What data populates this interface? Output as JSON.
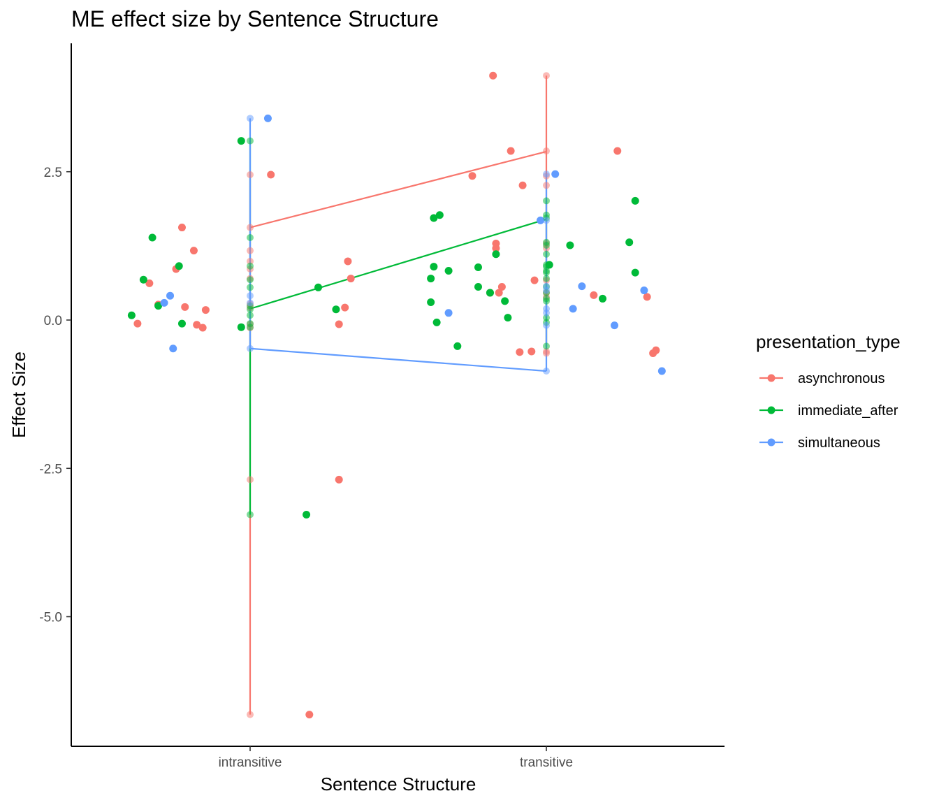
{
  "chart_data": {
    "type": "scatter",
    "title": "ME effect size by Sentence Structure",
    "xlabel": "Sentence Structure",
    "ylabel": "Effect Size",
    "categories": [
      "intransitive",
      "transitive"
    ],
    "yticks": [
      "2.5",
      "0.0",
      "-2.5",
      "-5.0"
    ],
    "ytick_values": [
      2.5,
      0.0,
      -2.5,
      -5.0
    ],
    "ylim": [
      -7.2,
      4.6
    ],
    "grid": false,
    "legend": {
      "title": "presentation_type",
      "placement": "right"
    },
    "series": [
      {
        "name": "asynchronous",
        "color": "#f8766d",
        "mean": [
          1.56,
          2.84
        ],
        "jittered_points": [
          [
            0.62,
            -0.06
          ],
          [
            0.66,
            0.62
          ],
          [
            0.69,
            0.26
          ],
          [
            0.75,
            0.86
          ],
          [
            0.77,
            1.56
          ],
          [
            0.78,
            0.22
          ],
          [
            0.81,
            1.17
          ],
          [
            0.82,
            -0.08
          ],
          [
            0.84,
            -0.13
          ],
          [
            0.85,
            0.17
          ],
          [
            1.07,
            2.45
          ],
          [
            1.2,
            -6.65
          ],
          [
            1.3,
            -2.69
          ],
          [
            1.3,
            -0.07
          ],
          [
            1.32,
            0.21
          ],
          [
            1.33,
            0.99
          ],
          [
            1.34,
            0.7
          ],
          [
            1.75,
            2.43
          ],
          [
            1.81,
            0.46
          ],
          [
            1.82,
            4.12
          ],
          [
            1.83,
            1.29
          ],
          [
            1.83,
            1.21
          ],
          [
            1.84,
            0.46
          ],
          [
            1.85,
            0.56
          ],
          [
            1.88,
            2.85
          ],
          [
            1.91,
            -0.54
          ],
          [
            1.92,
            2.27
          ],
          [
            1.95,
            -0.53
          ],
          [
            1.96,
            0.67
          ],
          [
            2.24,
            2.85
          ],
          [
            2.16,
            0.42
          ],
          [
            2.34,
            0.39
          ],
          [
            2.36,
            -0.56
          ],
          [
            2.37,
            -0.51
          ]
        ],
        "stacked_points": [
          [
            1,
            -6.65
          ],
          [
            1,
            -2.69
          ],
          [
            1,
            2.45
          ],
          [
            1,
            1.56
          ],
          [
            1,
            1.17
          ],
          [
            1,
            0.99
          ],
          [
            1,
            0.86
          ],
          [
            1,
            0.7
          ],
          [
            1,
            0.27
          ],
          [
            1,
            0.21
          ],
          [
            1,
            -0.07
          ],
          [
            1,
            -0.13
          ],
          [
            2,
            4.12
          ],
          [
            2,
            2.85
          ],
          [
            2,
            2.43
          ],
          [
            2,
            2.27
          ],
          [
            2,
            1.29
          ],
          [
            2,
            1.21
          ],
          [
            2,
            0.67
          ],
          [
            2,
            0.46
          ],
          [
            2,
            0.39
          ],
          [
            2,
            -0.53
          ],
          [
            2,
            -0.56
          ]
        ]
      },
      {
        "name": "immediate_after",
        "color": "#00ba38",
        "mean": [
          0.19,
          1.7
        ],
        "jittered_points": [
          [
            0.6,
            0.08
          ],
          [
            0.64,
            0.68
          ],
          [
            0.67,
            1.39
          ],
          [
            0.69,
            0.24
          ],
          [
            0.76,
            0.91
          ],
          [
            0.77,
            -0.06
          ],
          [
            0.97,
            3.02
          ],
          [
            0.97,
            -0.12
          ],
          [
            1.19,
            -3.28
          ],
          [
            1.23,
            0.55
          ],
          [
            1.29,
            0.18
          ],
          [
            1.61,
            0.7
          ],
          [
            1.61,
            0.3
          ],
          [
            1.62,
            1.72
          ],
          [
            1.62,
            0.9
          ],
          [
            1.63,
            -0.04
          ],
          [
            1.64,
            1.77
          ],
          [
            1.67,
            0.83
          ],
          [
            1.7,
            -0.44
          ],
          [
            1.77,
            0.89
          ],
          [
            1.77,
            0.56
          ],
          [
            1.81,
            0.46
          ],
          [
            1.83,
            1.11
          ],
          [
            1.86,
            0.32
          ],
          [
            1.87,
            0.04
          ],
          [
            2.01,
            0.93
          ],
          [
            2.08,
            1.26
          ],
          [
            2.19,
            0.36
          ],
          [
            2.28,
            1.31
          ],
          [
            2.3,
            2.01
          ],
          [
            2.3,
            0.8
          ]
        ],
        "stacked_points": [
          [
            1,
            3.02
          ],
          [
            1,
            1.39
          ],
          [
            1,
            0.91
          ],
          [
            1,
            0.68
          ],
          [
            1,
            0.55
          ],
          [
            1,
            0.24
          ],
          [
            1,
            0.18
          ],
          [
            1,
            0.08
          ],
          [
            1,
            -0.06
          ],
          [
            1,
            -0.12
          ],
          [
            1,
            -3.28
          ],
          [
            2,
            2.01
          ],
          [
            2,
            1.77
          ],
          [
            2,
            1.72
          ],
          [
            2,
            1.31
          ],
          [
            2,
            1.26
          ],
          [
            2,
            1.11
          ],
          [
            2,
            0.93
          ],
          [
            2,
            0.9
          ],
          [
            2,
            0.83
          ],
          [
            2,
            0.8
          ],
          [
            2,
            0.7
          ],
          [
            2,
            0.56
          ],
          [
            2,
            0.46
          ],
          [
            2,
            0.36
          ],
          [
            2,
            0.32
          ],
          [
            2,
            0.04
          ],
          [
            2,
            -0.04
          ],
          [
            2,
            -0.44
          ]
        ]
      },
      {
        "name": "simultaneous",
        "color": "#619cff",
        "mean": [
          -0.48,
          -0.86
        ],
        "jittered_points": [
          [
            0.71,
            0.29
          ],
          [
            0.73,
            0.41
          ],
          [
            0.74,
            -0.48
          ],
          [
            1.06,
            3.4
          ],
          [
            1.67,
            0.12
          ],
          [
            1.98,
            1.68
          ],
          [
            2.03,
            2.46
          ],
          [
            2.09,
            0.19
          ],
          [
            2.12,
            0.57
          ],
          [
            2.23,
            -0.09
          ],
          [
            2.33,
            0.5
          ],
          [
            2.39,
            -0.86
          ]
        ],
        "stacked_points": [
          [
            1,
            3.4
          ],
          [
            1,
            0.41
          ],
          [
            1,
            0.29
          ],
          [
            1,
            -0.48
          ],
          [
            2,
            2.46
          ],
          [
            2,
            1.68
          ],
          [
            2,
            0.57
          ],
          [
            2,
            0.5
          ],
          [
            2,
            0.19
          ],
          [
            2,
            0.12
          ],
          [
            2,
            -0.09
          ],
          [
            2,
            -0.86
          ]
        ]
      }
    ]
  }
}
